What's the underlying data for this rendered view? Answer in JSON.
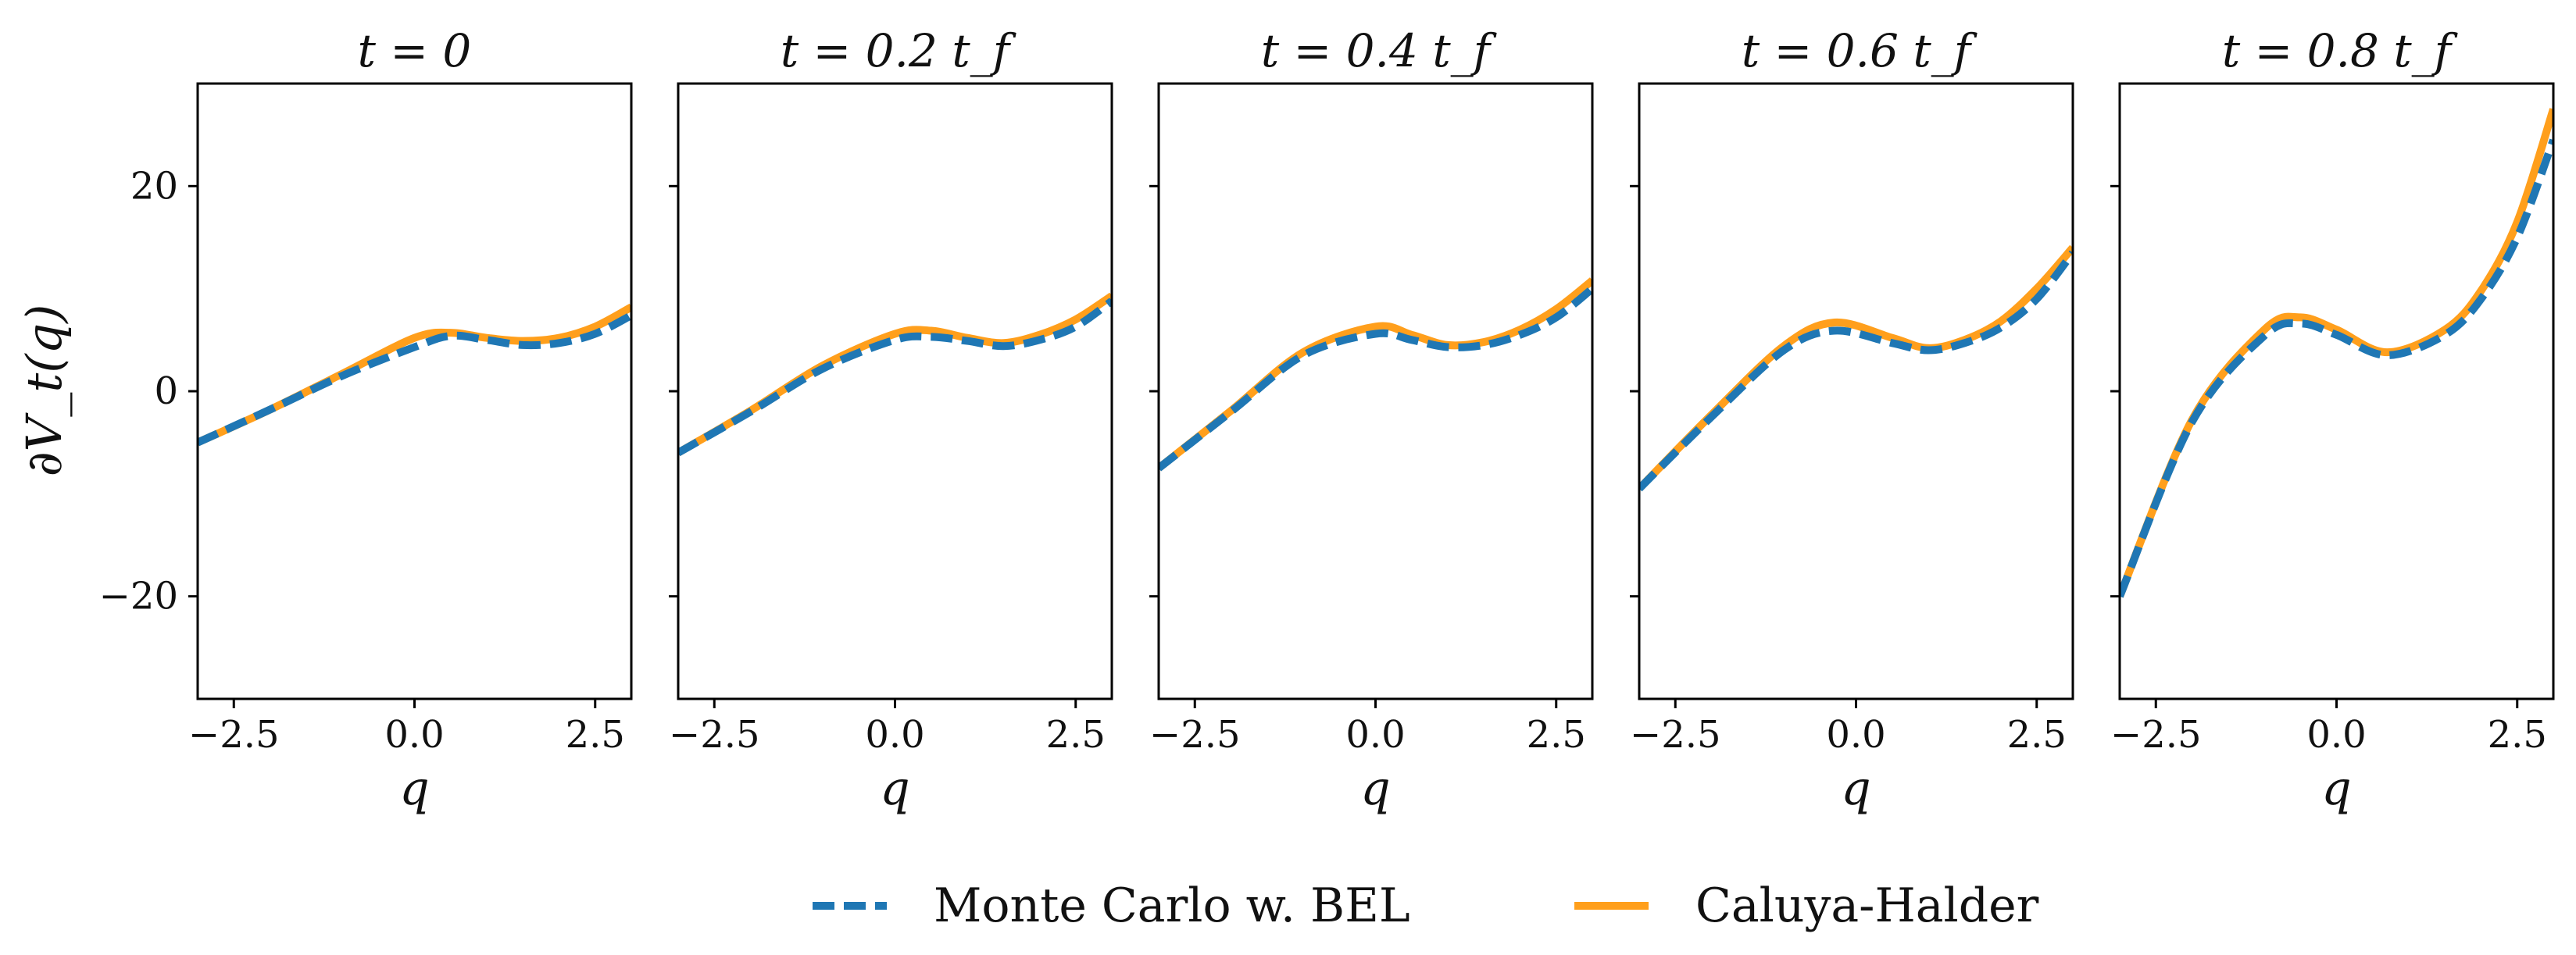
{
  "chart_data": {
    "type": "line",
    "ylabel": "∂V_t(q)",
    "ylim": [
      -30,
      30
    ],
    "yticks": [
      "20",
      "0",
      "−20"
    ],
    "xlim": [
      -3,
      3
    ],
    "xticks": [
      "−2.5",
      "0.0",
      "2.5"
    ],
    "legend": {
      "position": "bottom-center",
      "entries": [
        {
          "label": "Monte Carlo w. BEL",
          "color": "#1f77b4",
          "style": "dashed"
        },
        {
          "label": "Caluya-Halder",
          "color": "#ff9f1c",
          "style": "solid"
        }
      ]
    },
    "panels": [
      {
        "title": "t = 0",
        "xlabel": "q",
        "x": [
          -3,
          -2,
          -1,
          0,
          0.5,
          1,
          1.5,
          2,
          2.5,
          3
        ],
        "series": [
          {
            "name": "Monte Carlo w. BEL",
            "values": [
              -5,
              -1.8,
              1.5,
              4.3,
              5.4,
              5.0,
              4.5,
              4.7,
              5.6,
              7.4
            ]
          },
          {
            "name": "Caluya-Halder",
            "values": [
              -5,
              -1.8,
              1.7,
              5.2,
              5.7,
              5.2,
              4.9,
              5.2,
              6.3,
              8.2
            ]
          }
        ]
      },
      {
        "title": "t = 0.2 t_f",
        "xlabel": "q",
        "x": [
          -3,
          -2,
          -1,
          0,
          0.5,
          1,
          1.5,
          2,
          2.5,
          3
        ],
        "series": [
          {
            "name": "Monte Carlo w. BEL",
            "values": [
              -6,
              -2,
              2.2,
              5,
              5.3,
              4.9,
              4.4,
              5,
              6.3,
              8.8
            ]
          },
          {
            "name": "Caluya-Halder",
            "values": [
              -6,
              -1.9,
              2.5,
              5.6,
              5.9,
              5.2,
              4.7,
              5.5,
              7.0,
              9.3
            ]
          }
        ]
      },
      {
        "title": "t = 0.4 t_f",
        "xlabel": "q",
        "x": [
          -3,
          -2,
          -1,
          0,
          0.5,
          1,
          1.5,
          2,
          2.5,
          3
        ],
        "series": [
          {
            "name": "Monte Carlo w. BEL",
            "values": [
              -7.5,
              -2,
              3.5,
              5.6,
              5.0,
              4.3,
              4.5,
              5.5,
              7.2,
              10
            ]
          },
          {
            "name": "Caluya-Halder",
            "values": [
              -7.5,
              -1.9,
              3.8,
              6.3,
              5.5,
              4.5,
              4.8,
              6.0,
              8.0,
              10.8
            ]
          }
        ]
      },
      {
        "title": "t = 0.6 t_f",
        "xlabel": "q",
        "x": [
          -3,
          -2,
          -1,
          -0.3,
          0.5,
          1,
          1.5,
          2,
          2.5,
          3
        ],
        "series": [
          {
            "name": "Monte Carlo w. BEL",
            "values": [
              -9.5,
              -2.5,
              4,
              5.9,
              4.7,
              4,
              4.7,
              6.2,
              9,
              13.5
            ]
          },
          {
            "name": "Caluya-Halder",
            "values": [
              -9.5,
              -2.3,
              4.4,
              6.7,
              5.2,
              4.2,
              5.0,
              6.8,
              10,
              14
            ]
          }
        ]
      },
      {
        "title": "t = 0.8 t_f",
        "xlabel": "q",
        "x": [
          -3,
          -2,
          -1,
          -0.5,
          0,
          0.7,
          1.5,
          2,
          2.5,
          3
        ],
        "series": [
          {
            "name": "Monte Carlo w. BEL",
            "values": [
              -20,
              -3,
              5.4,
              6.6,
              5.5,
              3.5,
              5.5,
              9,
              15,
              24.5
            ]
          },
          {
            "name": "Caluya-Halder",
            "values": [
              -20,
              -2.8,
              6,
              7.2,
              6.0,
              3.8,
              6.0,
              9.8,
              16.5,
              27.5
            ]
          }
        ]
      }
    ]
  }
}
